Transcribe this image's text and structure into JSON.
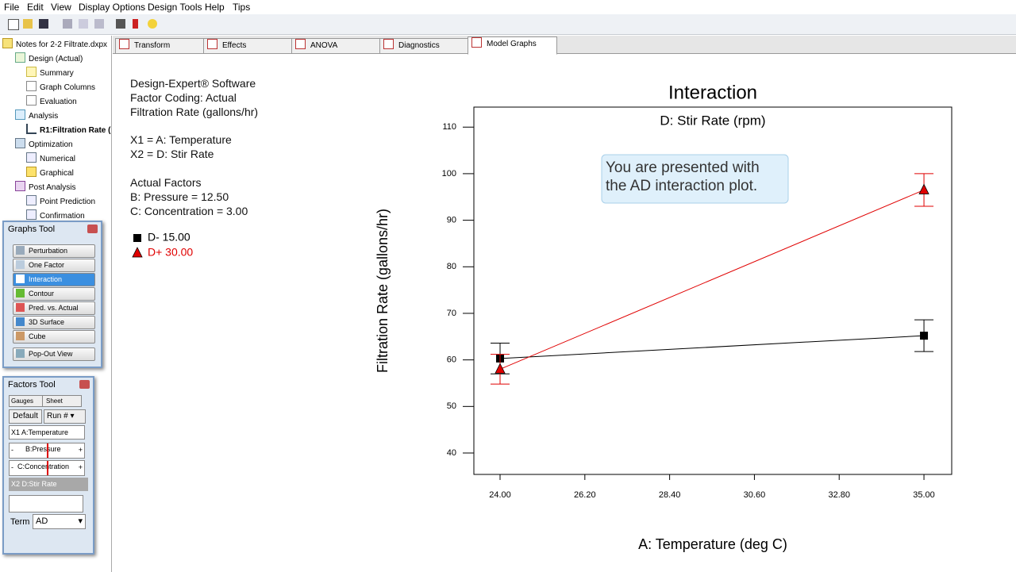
{
  "menu": [
    "File",
    "Edit",
    "View",
    "Display Options",
    "Design Tools",
    "Help",
    "Tips"
  ],
  "tree": [
    "Notes for 2-2 Filtrate.dxpx",
    "Design (Actual)",
    "Summary",
    "Graph Columns",
    "Evaluation",
    "Analysis",
    "R1:Filtration Rate (",
    "Optimization",
    "Numerical",
    "Graphical",
    "Post Analysis",
    "Point Prediction",
    "Confirmation"
  ],
  "graphs_tool": {
    "title": "Graphs Tool",
    "buttons": [
      "Perturbation",
      "One Factor",
      "Interaction",
      "Contour",
      "Pred. vs. Actual",
      "3D Surface",
      "Cube",
      "Pop-Out View"
    ]
  },
  "factors_tool": {
    "title": "Factors Tool",
    "tabs": [
      "Gauges",
      "Sheet"
    ],
    "default": "Default",
    "run": "Run #",
    "x1": "X1",
    "x1_factor": "A:Temperature",
    "gauge_min": "-",
    "gauge_max": "+",
    "gauges": [
      "B:Pressure",
      "C:Concentration"
    ],
    "x2": "X2 D:Stir Rate",
    "term_label": "Term",
    "term": "AD"
  },
  "tabs": [
    "Transform",
    "Effects",
    "ANOVA",
    "Diagnostics",
    "Model Graphs"
  ],
  "info": {
    "lines": [
      "Design-Expert® Software",
      "Factor Coding: Actual",
      "Filtration Rate (gallons/hr)"
    ],
    "factors": [
      "X1 = A: Temperature",
      "X2 = D: Stir Rate"
    ],
    "actual_title": "Actual Factors",
    "actual": [
      "B: Pressure = 12.50",
      "C: Concentration = 3.00"
    ]
  },
  "chart_data": {
    "type": "line",
    "title": "Interaction",
    "subtitle": "D: Stir Rate (rpm)",
    "x_label": "A: Temperature (deg C)",
    "y_label": "Filtration Rate (gallons/hr)",
    "annotation": [
      "You are presented with",
      "the AD interaction plot."
    ],
    "x": [
      24,
      35
    ],
    "series": [
      {
        "name": "D- 15.00",
        "color": "#000000",
        "marker": "square",
        "values": [
          60.3,
          65.2
        ],
        "errors": [
          3.3,
          3.4
        ]
      },
      {
        "name": "D+ 30.00",
        "color": "#e00000",
        "marker": "triangle",
        "values": [
          58,
          96.5
        ],
        "errors": [
          3.2,
          3.5
        ]
      }
    ],
    "xlim": [
      23.32,
      35.72
    ],
    "ylim": [
      35.4,
      114.3
    ],
    "xticks": [
      {
        "value": 24,
        "label": "24.00"
      },
      {
        "value": 26.2,
        "label": "26.20"
      },
      {
        "value": 28.4,
        "label": "28.40"
      },
      {
        "value": 30.6,
        "label": "30.60"
      },
      {
        "value": 32.8,
        "label": "32.80"
      },
      {
        "value": 35,
        "label": "35.00"
      }
    ],
    "yticks": [
      40,
      50,
      60,
      70,
      80,
      90,
      100,
      110
    ]
  }
}
